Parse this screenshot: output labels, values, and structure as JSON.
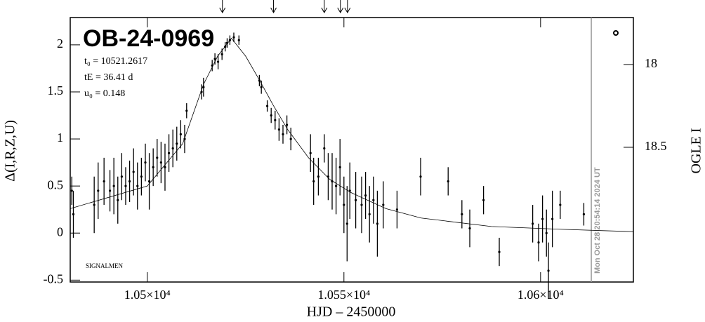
{
  "chart_data": {
    "type": "scatter",
    "title": "OB-24-0969",
    "parameters": [
      "t₀ = 10521.2617",
      "tE = 36.41 d",
      "u₀ = 0.148"
    ],
    "label": "SIGNALMEN",
    "timestamp": "Mon Oct 28 20:54:14 2024 UT",
    "xlabel": "HJD – 2450000",
    "ylabel": "Δ(I,R,Z,U)",
    "y2label": "OGLE I",
    "xlim": [
      10480.4,
      10623.6
    ],
    "ylim": [
      -0.52,
      2.29
    ],
    "y2lim": [
      19.314,
      17.716
    ],
    "xticks": [
      {
        "value": 10500,
        "label": "1.05×10⁴"
      },
      {
        "value": 10550,
        "label": "1.055×10⁴"
      },
      {
        "value": 10600,
        "label": "1.06×10⁴"
      }
    ],
    "yticks": [
      -0.5,
      0,
      0.5,
      1,
      1.5,
      2
    ],
    "y2ticks": [
      18,
      18.5
    ],
    "arrows_x": [
      10519.1,
      10532.1,
      10545.0,
      10549.1,
      10550.9
    ],
    "now_x": 10612.9,
    "model": {
      "x": [
        10480.4,
        10500,
        10509,
        10514.3,
        10517.9,
        10521.4,
        10525,
        10528.6,
        10532,
        10535.7,
        10541,
        10546.4,
        10551.8,
        10560.7,
        10569.6,
        10587.5,
        10605.4,
        10623.6
      ],
      "y": [
        0.26,
        0.5,
        0.95,
        1.58,
        1.88,
        2.07,
        1.88,
        1.62,
        1.36,
        1.1,
        0.8,
        0.57,
        0.43,
        0.26,
        0.16,
        0.07,
        0.04,
        0.015
      ]
    },
    "series": [
      {
        "color": "#000000",
        "x": [
          10480.8,
          10481.2,
          10486.5,
          10487.5,
          10489.0,
          10490.5,
          10491.5,
          10492.5,
          10493.5,
          10494.5,
          10495.5,
          10496.5,
          10497.5,
          10498.5,
          10499.5,
          10500.5,
          10501.5,
          10502.5,
          10503.5,
          10504.5,
          10505.5,
          10506.5,
          10507.5,
          10508.5,
          10509.5,
          10510.0,
          10513.8,
          10514.3,
          10516.5,
          10517.2,
          10518.0,
          10519.0,
          10519.8,
          10520.3,
          10521.0,
          10522.0,
          10523.3,
          10528.5,
          10529.0,
          10530.5,
          10531.5,
          10532.5,
          10533.5,
          10534.5,
          10535.5,
          10536.5,
          10541.5,
          10542.3,
          10543.5,
          10545.0,
          10546.0,
          10547.0,
          10548.0,
          10549.0,
          10550.0,
          10550.8,
          10551.5,
          10553.0,
          10554.5,
          10555.5,
          10556.5,
          10557.5,
          10558.5,
          10560.0,
          10563.5,
          10569.5,
          10576.5,
          10580.0,
          10582.0,
          10585.5,
          10589.5,
          10598.0,
          10599.5,
          10600.5,
          10601.5,
          10602.0,
          10603.0,
          10605.0,
          10611.0
        ],
        "values": [
          0.45,
          0.2,
          0.3,
          0.45,
          0.55,
          0.45,
          0.5,
          0.35,
          0.6,
          0.5,
          0.55,
          0.65,
          0.5,
          0.6,
          0.75,
          0.55,
          0.7,
          0.8,
          0.75,
          0.7,
          0.85,
          0.9,
          0.95,
          1.05,
          1.0,
          1.3,
          1.5,
          1.55,
          1.78,
          1.85,
          1.82,
          1.9,
          1.98,
          2.02,
          2.05,
          2.08,
          2.05,
          1.62,
          1.55,
          1.35,
          1.25,
          1.2,
          1.1,
          1.05,
          1.15,
          1.0,
          0.85,
          0.55,
          0.6,
          0.9,
          0.6,
          0.55,
          0.5,
          0.7,
          0.3,
          0.1,
          0.45,
          0.35,
          0.3,
          0.4,
          0.2,
          0.35,
          0.1,
          0.3,
          0.25,
          0.6,
          0.55,
          0.2,
          0.05,
          0.35,
          -0.2,
          0.1,
          -0.1,
          0.15,
          0.0,
          -0.4,
          0.15,
          0.3,
          0.2
        ],
        "errors": [
          0.15,
          0.25,
          0.3,
          0.3,
          0.25,
          0.22,
          0.3,
          0.25,
          0.25,
          0.2,
          0.22,
          0.25,
          0.25,
          0.2,
          0.2,
          0.3,
          0.2,
          0.2,
          0.22,
          0.25,
          0.2,
          0.2,
          0.18,
          0.15,
          0.15,
          0.08,
          0.08,
          0.1,
          0.06,
          0.06,
          0.08,
          0.06,
          0.05,
          0.05,
          0.05,
          0.05,
          0.05,
          0.06,
          0.07,
          0.06,
          0.08,
          0.1,
          0.12,
          0.1,
          0.1,
          0.12,
          0.2,
          0.25,
          0.2,
          0.15,
          0.25,
          0.3,
          0.3,
          0.3,
          0.3,
          0.4,
          0.3,
          0.3,
          0.3,
          0.25,
          0.3,
          0.25,
          0.35,
          0.25,
          0.2,
          0.2,
          0.15,
          0.15,
          0.2,
          0.15,
          0.15,
          0.2,
          0.2,
          0.25,
          0.25,
          0.3,
          0.3,
          0.15,
          0.12
        ]
      }
    ]
  }
}
